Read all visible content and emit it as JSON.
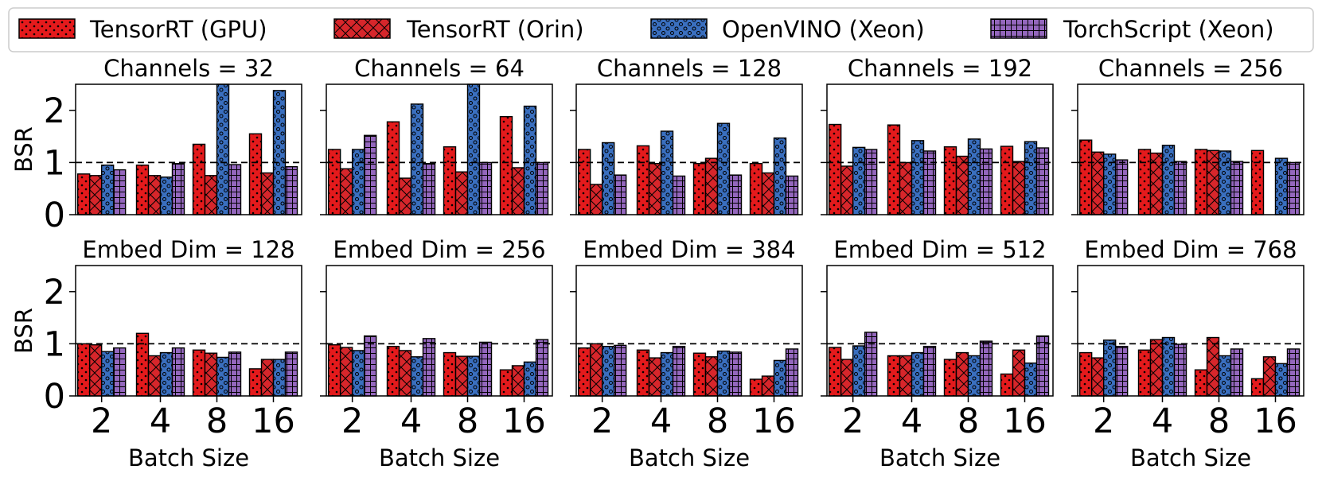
{
  "legend": {
    "items": [
      {
        "label": "TensorRT (GPU)",
        "color": "#e41a1c",
        "pattern": "dots"
      },
      {
        "label": "TensorRT (Orin)",
        "color": "#d7262b",
        "pattern": "crosshatch"
      },
      {
        "label": "OpenVINO (Xeon)",
        "color": "#3a6fbf",
        "pattern": "circles"
      },
      {
        "label": "TorchScript (Xeon)",
        "color": "#9467bd",
        "pattern": "grid"
      }
    ]
  },
  "chart_data": {
    "type": "bar",
    "ylabel": "BSR",
    "xlabel": "Batch Size",
    "categories": [
      "2",
      "4",
      "8",
      "16"
    ],
    "ylim": [
      0,
      2.5
    ],
    "yticks": [
      "0",
      "1",
      "2"
    ],
    "reference_line": 1,
    "rows": [
      {
        "panels": [
          {
            "title": "Channels = 32",
            "series": [
              {
                "name": "TensorRT (GPU)",
                "values": [
                  0.78,
                  0.95,
                  1.35,
                  1.55
                ]
              },
              {
                "name": "TensorRT (Orin)",
                "values": [
                  0.75,
                  0.75,
                  0.75,
                  0.8
                ]
              },
              {
                "name": "OpenVINO (Xeon)",
                "values": [
                  0.95,
                  0.72,
                  2.55,
                  2.38
                ]
              },
              {
                "name": "TorchScript (Xeon)",
                "values": [
                  0.86,
                  0.98,
                  0.96,
                  0.92
                ]
              }
            ]
          },
          {
            "title": "Channels = 64",
            "series": [
              {
                "name": "TensorRT (GPU)",
                "values": [
                  1.25,
                  1.78,
                  1.3,
                  1.88
                ]
              },
              {
                "name": "TensorRT (Orin)",
                "values": [
                  0.88,
                  0.7,
                  0.82,
                  0.9
                ]
              },
              {
                "name": "OpenVINO (Xeon)",
                "values": [
                  1.25,
                  2.12,
                  2.55,
                  2.08
                ]
              },
              {
                "name": "TorchScript (Xeon)",
                "values": [
                  1.52,
                  0.98,
                  1.0,
                  1.0
                ]
              }
            ]
          },
          {
            "title": "Channels = 128",
            "series": [
              {
                "name": "TensorRT (GPU)",
                "values": [
                  1.25,
                  1.32,
                  0.98,
                  0.98
                ]
              },
              {
                "name": "TensorRT (Orin)",
                "values": [
                  0.58,
                  0.98,
                  1.08,
                  0.8
                ]
              },
              {
                "name": "OpenVINO (Xeon)",
                "values": [
                  1.38,
                  1.6,
                  1.75,
                  1.47
                ]
              },
              {
                "name": "TorchScript (Xeon)",
                "values": [
                  0.76,
                  0.74,
                  0.76,
                  0.74
                ]
              }
            ]
          },
          {
            "title": "Channels = 192",
            "series": [
              {
                "name": "TensorRT (GPU)",
                "values": [
                  1.73,
                  1.72,
                  1.3,
                  1.31
                ]
              },
              {
                "name": "TensorRT (Orin)",
                "values": [
                  0.93,
                  1.0,
                  1.12,
                  1.02
                ]
              },
              {
                "name": "OpenVINO (Xeon)",
                "values": [
                  1.29,
                  1.42,
                  1.45,
                  1.4
                ]
              },
              {
                "name": "TorchScript (Xeon)",
                "values": [
                  1.25,
                  1.22,
                  1.26,
                  1.28
                ]
              }
            ]
          },
          {
            "title": "Channels = 256",
            "series": [
              {
                "name": "TensorRT (GPU)",
                "values": [
                  1.43,
                  1.25,
                  1.25,
                  1.23
                ]
              },
              {
                "name": "TensorRT (Orin)",
                "values": [
                  1.2,
                  1.18,
                  1.23,
                  0
                ]
              },
              {
                "name": "OpenVINO (Xeon)",
                "values": [
                  1.16,
                  1.33,
                  1.22,
                  1.08
                ]
              },
              {
                "name": "TorchScript (Xeon)",
                "values": [
                  1.05,
                  1.02,
                  1.02,
                  1.0
                ]
              }
            ]
          }
        ]
      },
      {
        "panels": [
          {
            "title": "Embed Dim = 128",
            "series": [
              {
                "name": "TensorRT (GPU)",
                "values": [
                  1.0,
                  1.2,
                  0.88,
                  0.52
                ]
              },
              {
                "name": "TensorRT (Orin)",
                "values": [
                  0.98,
                  0.77,
                  0.82,
                  0.7
                ]
              },
              {
                "name": "OpenVINO (Xeon)",
                "values": [
                  0.85,
                  0.83,
                  0.74,
                  0.7
                ]
              },
              {
                "name": "TorchScript (Xeon)",
                "values": [
                  0.92,
                  0.92,
                  0.84,
                  0.84
                ]
              }
            ]
          },
          {
            "title": "Embed Dim = 256",
            "series": [
              {
                "name": "TensorRT (GPU)",
                "values": [
                  0.98,
                  0.95,
                  0.83,
                  0.5
                ]
              },
              {
                "name": "TensorRT (Orin)",
                "values": [
                  0.93,
                  0.87,
                  0.76,
                  0.58
                ]
              },
              {
                "name": "OpenVINO (Xeon)",
                "values": [
                  0.87,
                  0.75,
                  0.76,
                  0.65
                ]
              },
              {
                "name": "TorchScript (Xeon)",
                "values": [
                  1.15,
                  1.1,
                  1.03,
                  1.08
                ]
              }
            ]
          },
          {
            "title": "Embed Dim = 384",
            "series": [
              {
                "name": "TensorRT (GPU)",
                "values": [
                  0.92,
                  0.88,
                  0.82,
                  0.32
                ]
              },
              {
                "name": "TensorRT (Orin)",
                "values": [
                  1.0,
                  0.73,
                  0.75,
                  0.38
                ]
              },
              {
                "name": "OpenVINO (Xeon)",
                "values": [
                  0.95,
                  0.83,
                  0.86,
                  0.68
                ]
              },
              {
                "name": "TorchScript (Xeon)",
                "values": [
                  0.97,
                  0.95,
                  0.84,
                  0.9
                ]
              }
            ]
          },
          {
            "title": "Embed Dim = 512",
            "series": [
              {
                "name": "TensorRT (GPU)",
                "values": [
                  0.93,
                  0.77,
                  0.7,
                  0.42
                ]
              },
              {
                "name": "TensorRT (Orin)",
                "values": [
                  0.7,
                  0.77,
                  0.83,
                  0.88
                ]
              },
              {
                "name": "OpenVINO (Xeon)",
                "values": [
                  0.96,
                  0.83,
                  0.77,
                  0.63
                ]
              },
              {
                "name": "TorchScript (Xeon)",
                "values": [
                  1.22,
                  0.95,
                  1.05,
                  1.15
                ]
              }
            ]
          },
          {
            "title": "Embed Dim = 768",
            "series": [
              {
                "name": "TensorRT (GPU)",
                "values": [
                  0.83,
                  0.88,
                  0.5,
                  0.33
                ]
              },
              {
                "name": "TensorRT (Orin)",
                "values": [
                  0.73,
                  1.08,
                  1.12,
                  0.75
                ]
              },
              {
                "name": "OpenVINO (Xeon)",
                "values": [
                  1.07,
                  1.12,
                  0.77,
                  0.62
                ]
              },
              {
                "name": "TorchScript (Xeon)",
                "values": [
                  0.95,
                  0.99,
                  0.9,
                  0.9
                ]
              }
            ]
          }
        ]
      }
    ]
  }
}
